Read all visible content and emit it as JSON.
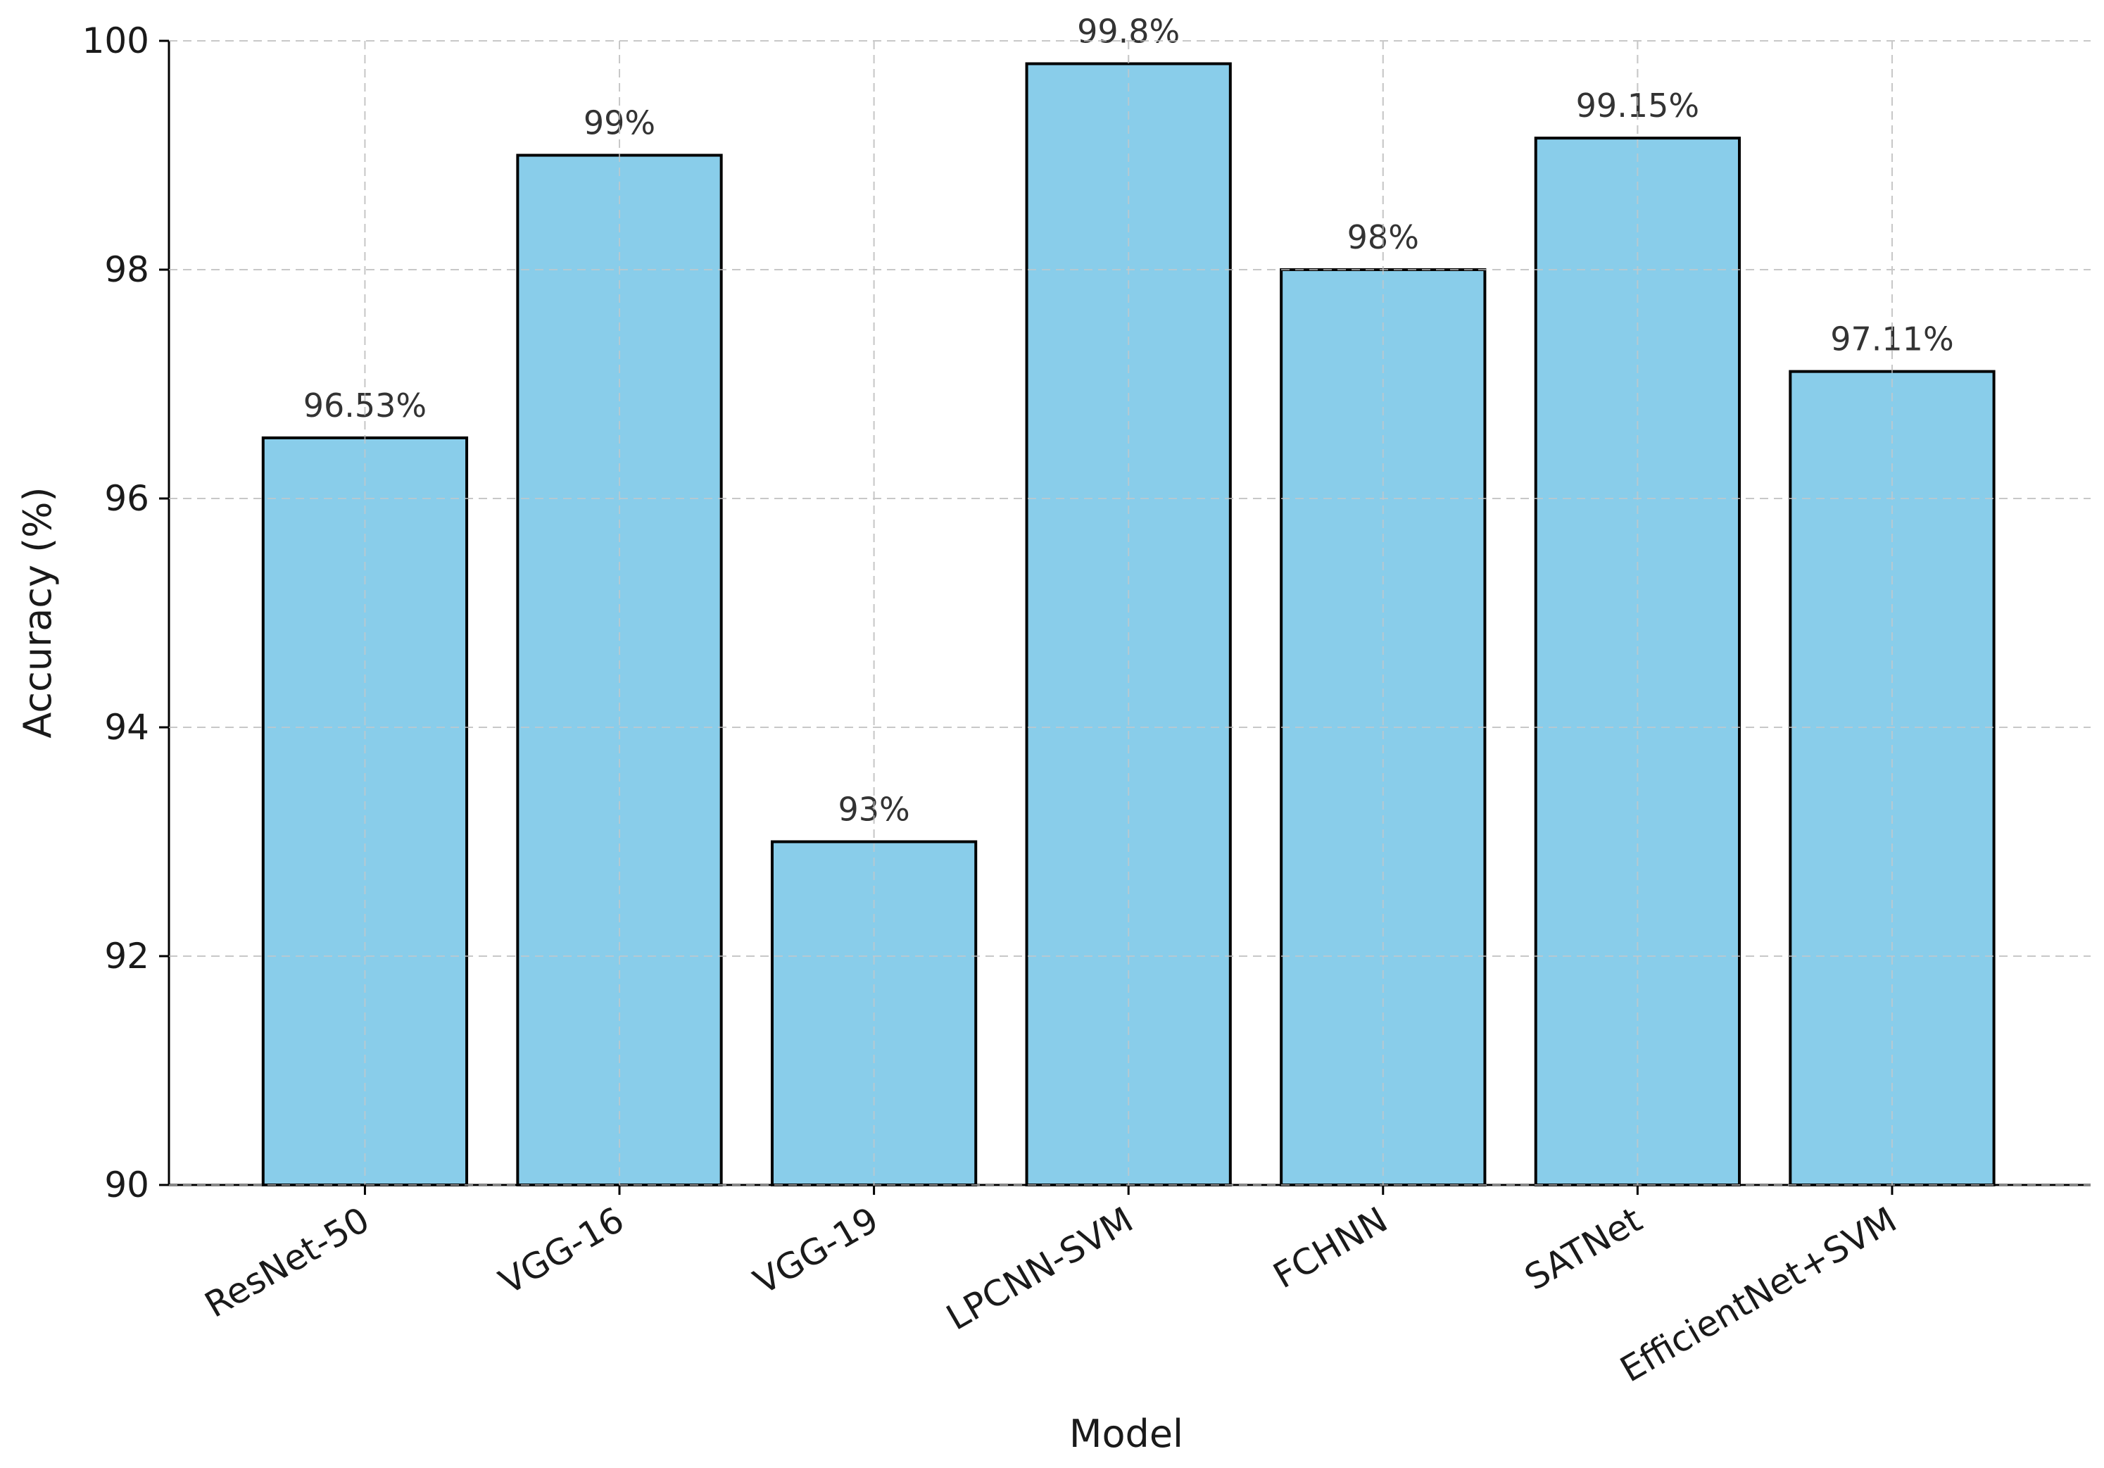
{
  "chart_data": {
    "type": "bar",
    "categories": [
      "ResNet-50",
      "VGG-16",
      "VGG-19",
      "LPCNN-SVM",
      "FCHNN",
      "SATNet",
      "EfficientNet+SVM"
    ],
    "values": [
      96.53,
      99,
      93,
      99.8,
      98,
      99.15,
      97.11
    ],
    "value_labels": [
      "96.53%",
      "99%",
      "93%",
      "99.8%",
      "98%",
      "99.15%",
      "97.11%"
    ],
    "xlabel": "Model",
    "ylabel": "Accuracy (%)",
    "ylim": [
      90,
      100
    ],
    "yticks": [
      90,
      92,
      94,
      96,
      98,
      100
    ],
    "grid": true,
    "colors": {
      "bar_fill": "#89CDEA",
      "bar_edge": "#000000"
    }
  }
}
